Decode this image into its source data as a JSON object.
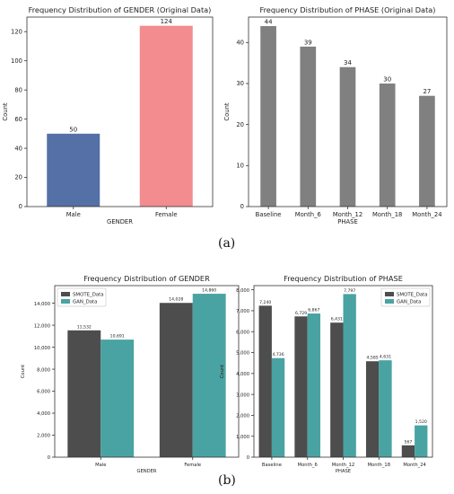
{
  "captions": {
    "a": "(a)",
    "b": "(b)"
  },
  "chart_data": [
    {
      "id": "gender_orig",
      "type": "bar",
      "title": "Frequency Distribution of GENDER (Original Data)",
      "xlabel": "GENDER",
      "ylabel": "Count",
      "categories": [
        "Male",
        "Female"
      ],
      "values": [
        50,
        124
      ],
      "value_labels": [
        "50",
        "124"
      ],
      "colors": [
        "#5470a6",
        "#f28c8f"
      ],
      "ylim": [
        0,
        130
      ],
      "yticks": [
        0,
        20,
        40,
        60,
        80,
        100,
        120
      ],
      "ytick_labels": [
        "0",
        "20",
        "40",
        "60",
        "80",
        "100",
        "120"
      ]
    },
    {
      "id": "phase_orig",
      "type": "bar",
      "title": "Frequency Distribution of PHASE (Original Data)",
      "xlabel": "PHASE",
      "ylabel": "Count",
      "categories": [
        "Baseline",
        "Month_6",
        "Month_12",
        "Month_18",
        "Month_24"
      ],
      "values": [
        44,
        39,
        34,
        30,
        27
      ],
      "value_labels": [
        "44",
        "39",
        "34",
        "30",
        "27"
      ],
      "colors": [
        "#808080"
      ],
      "ylim": [
        0,
        46.2
      ],
      "yticks": [
        0,
        10,
        20,
        30,
        40
      ],
      "ytick_labels": [
        "0",
        "10",
        "20",
        "30",
        "40"
      ]
    },
    {
      "id": "gender_aug",
      "type": "bar",
      "title": "Frequency Distribution of GENDER",
      "xlabel": "GENDER",
      "ylabel": "Count",
      "categories": [
        "Male",
        "Female"
      ],
      "series": [
        {
          "name": "SMOTE_Data",
          "values": [
            11532,
            14028
          ],
          "value_labels": [
            "11,532",
            "14,028"
          ],
          "color": "#4d4d4d"
        },
        {
          "name": "GAN_Data",
          "values": [
            10691,
            14860
          ],
          "value_labels": [
            "10,691",
            "14,860"
          ],
          "color": "#4aa3a3"
        }
      ],
      "legend": "top-left",
      "ylim": [
        0,
        15600
      ],
      "yticks": [
        0,
        2000,
        4000,
        6000,
        8000,
        10000,
        12000,
        14000
      ],
      "ytick_labels": [
        "0",
        "2,000",
        "4,000",
        "6,000",
        "8,000",
        "10,000",
        "12,000",
        "14,000"
      ]
    },
    {
      "id": "phase_aug",
      "type": "bar",
      "title": "Frequency Distribution of PHASE",
      "xlabel": "PHASE",
      "ylabel": "Count",
      "categories": [
        "Baseline",
        "Month_6",
        "Month_12",
        "Month_18",
        "Month_24"
      ],
      "series": [
        {
          "name": "SMOTE_Data",
          "values": [
            7240,
            6729,
            6431,
            4585,
            567
          ],
          "value_labels": [
            "7,240",
            "6,729",
            "6,431",
            "4,585",
            "567"
          ],
          "color": "#4d4d4d"
        },
        {
          "name": "GAN_Data",
          "values": [
            4736,
            6867,
            7797,
            4631,
            1520
          ],
          "value_labels": [
            "4,736",
            "6,867",
            "7,797",
            "4,631",
            "1,520"
          ],
          "color": "#4aa3a3"
        }
      ],
      "legend": "top-right",
      "ylim": [
        0,
        8200
      ],
      "yticks": [
        0,
        1000,
        2000,
        3000,
        4000,
        5000,
        6000,
        7000,
        8000
      ],
      "ytick_labels": [
        "0",
        "1,000",
        "2,000",
        "3,000",
        "4,000",
        "5,000",
        "6,000",
        "7,000",
        "8,000"
      ]
    }
  ]
}
